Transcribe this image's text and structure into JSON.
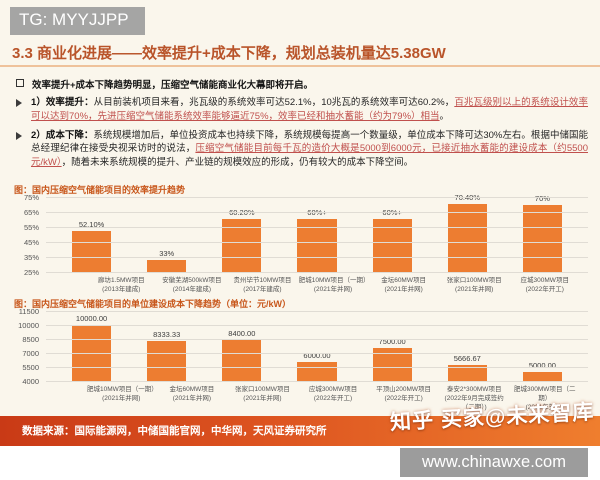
{
  "badge_top": "TG: MYYJJPP",
  "title": "3.3 商业化进展——效率提升+成本下降，规划总装机量达5.38GW",
  "bullets": {
    "heading": "效率提升+成本下降趋势明显，压缩空气储能商业化大幕即将开启。",
    "item1": {
      "lead": "1）效率提升：",
      "normal": "从目前装机项目来看，兆瓦级的系统效率可达52.1%，10兆瓦的系统效率可达60.2%，",
      "highlight": "百兆瓦级别以上的系统设计效率可以达到70%，先进压缩空气储能系统效率能够逼近75%，效率已经和抽水蓄能（约为79%）相当",
      "tail": "。"
    },
    "item2": {
      "lead": "2）成本下降：",
      "normal": "系统规模增加后，单位投资成本也持续下降，系统规模每提高一个数量级，单位成本下降可达30%左右。根据中储国能总经理纪律在接受央视采访时的说法，",
      "highlight": "压缩空气储能目前每千瓦的造价大概是5000到6000元，已接近抽水蓄能的建设成本（约5500元/kW）",
      "tail": "，随着未来系统规模的提升、产业链的规模效应的形成，仍有较大的成本下降空间。"
    }
  },
  "chart_data": [
    {
      "type": "bar",
      "title": "图：国内压缩空气储能项目的效率提升趋势",
      "ylabel": "效率",
      "ylim": [
        25,
        75
      ],
      "yticks": [
        {
          "v": 75,
          "label": "75%"
        },
        {
          "v": 65,
          "label": "65%"
        },
        {
          "v": 55,
          "label": "55%"
        },
        {
          "v": 45,
          "label": "45%"
        },
        {
          "v": 35,
          "label": "35%"
        },
        {
          "v": 25,
          "label": "25%"
        }
      ],
      "bars": [
        {
          "label1": "廊坊1.5MW项目",
          "label2": "(2013年建成)",
          "value": 52.1,
          "value_label": "52.10%"
        },
        {
          "label1": "安徽芜湖500kW项目",
          "label2": "(2014年建成)",
          "value": 33,
          "value_label": "33%"
        },
        {
          "label1": "贵州毕节10MW项目",
          "label2": "(2017年建成)",
          "value": 60.2,
          "value_label": "60.20%"
        },
        {
          "label1": "肥城10MW项目（一期）",
          "label2": "(2021年并网)",
          "value": 60.5,
          "value_label": "60%+"
        },
        {
          "label1": "金坛60MW项目",
          "label2": "(2021年并网)",
          "value": 60.5,
          "value_label": "60%+"
        },
        {
          "label1": "张家口100MW项目",
          "label2": "(2021年并网)",
          "value": 70.4,
          "value_label": "70.40%"
        },
        {
          "label1": "应城300MW项目",
          "label2": "(2022年开工)",
          "value": 70,
          "value_label": "70%"
        }
      ],
      "bar_color": "#ed7d31",
      "grid": true,
      "legend": false
    },
    {
      "type": "bar",
      "title": "图：国内压缩空气储能项目的单位建设成本下降趋势（单位：元/kW）",
      "ylabel": "单位建设成本（元/kW）",
      "ylim": [
        4000,
        11500
      ],
      "yticks": [
        {
          "v": 11500,
          "label": "11500"
        },
        {
          "v": 10000,
          "label": "10000"
        },
        {
          "v": 8500,
          "label": "8500"
        },
        {
          "v": 7000,
          "label": "7000"
        },
        {
          "v": 5500,
          "label": "5500"
        },
        {
          "v": 4000,
          "label": "4000"
        }
      ],
      "bars": [
        {
          "label1": "肥城10MW项目（一期）",
          "label2": "(2021年并网)",
          "value": 10000,
          "value_label": "10000.00"
        },
        {
          "label1": "金坛60MW项目",
          "label2": "(2021年并网)",
          "value": 8333.33,
          "value_label": "8333.33"
        },
        {
          "label1": "张家口100MW项目",
          "label2": "(2021年并网)",
          "value": 8400,
          "value_label": "8400.00"
        },
        {
          "label1": "应城300MW项目",
          "label2": "(2022年开工)",
          "value": 6000,
          "value_label": "6000.00"
        },
        {
          "label1": "平顶山200MW项目",
          "label2": "(2022年开工)",
          "value": 7500,
          "value_label": "7500.00"
        },
        {
          "label1": "泰安2*300MW项目",
          "label2": "(2022年9月完成签约（二期）)",
          "value": 5666.67,
          "value_label": "5666.67"
        },
        {
          "label1": "肥城300MW项目（二期）",
          "label2": "(2021年签约)",
          "value": 5000,
          "value_label": "5000.00"
        }
      ],
      "bar_color": "#ed7d31",
      "grid": true,
      "legend": false
    }
  ],
  "footer": {
    "source": "数据来源：国际能源网，中储国能官网，中华网，天风证券研究所"
  },
  "watermark": "知乎 买家@未来智库",
  "badge_bottom": "www.chinawxe.com",
  "colors": {
    "accent_title": "#b9542a",
    "highlight_text": "#c0504d",
    "caption": "#c8571b",
    "bar": "#ed7d31",
    "footer_left": "#c93a16",
    "footer_right": "#ef7e2e",
    "badge_gray": "#9e9e9e"
  }
}
